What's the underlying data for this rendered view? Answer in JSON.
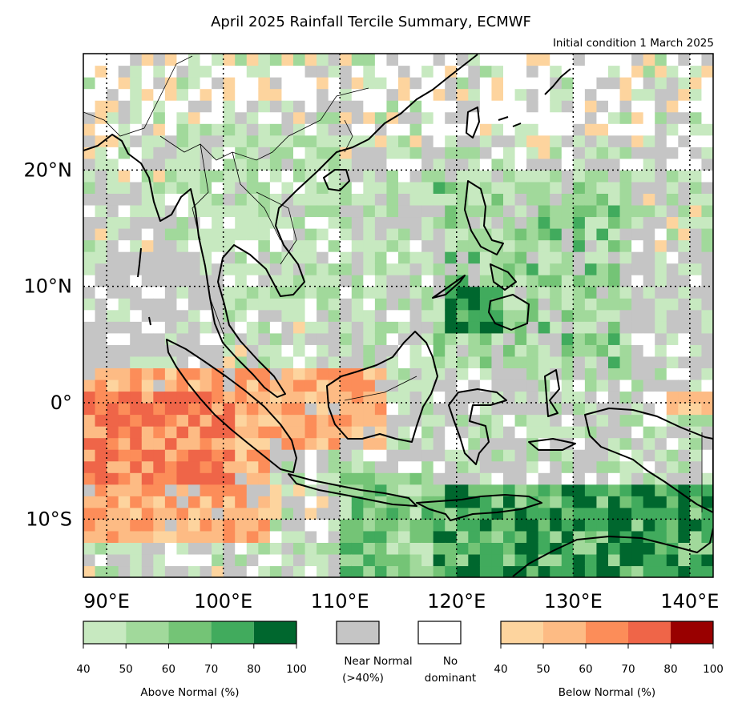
{
  "title": "April 2025 Rainfall Tercile Summary, ECMWF",
  "subtitle": "Initial condition 1 March 2025",
  "map": {
    "lon_range": [
      88,
      142
    ],
    "lat_range": [
      -15,
      30
    ],
    "lon_ticks": [
      {
        "value": 90,
        "label": "90°E"
      },
      {
        "value": 100,
        "label": "100°E"
      },
      {
        "value": 110,
        "label": "110°E"
      },
      {
        "value": 120,
        "label": "120°E"
      },
      {
        "value": 130,
        "label": "130°E"
      },
      {
        "value": 140,
        "label": "140°E"
      }
    ],
    "lat_ticks": [
      {
        "value": 20,
        "label": "20°N"
      },
      {
        "value": 10,
        "label": "10°N"
      },
      {
        "value": 0,
        "label": "0°"
      },
      {
        "value": -10,
        "label": "10°S"
      }
    ],
    "gridlines": "dotted",
    "category_colors": {
      "A40": "#c7e9c0",
      "A50": "#a1d99b",
      "A60": "#74c476",
      "A70": "#41ab5d",
      "A80": "#00672e",
      "N": "#c5c5c5",
      "W": "#ffffff",
      "B40": "#fdd49e",
      "B50": "#fdbb84",
      "B60": "#fc8d59",
      "B70": "#ef6548",
      "B80": "#990000"
    }
  },
  "legend": {
    "above": {
      "label": "Above Normal (%)",
      "ticks": [
        "40",
        "50",
        "60",
        "70",
        "80",
        "100"
      ],
      "colors": [
        "#c7e9c0",
        "#a1d99b",
        "#74c476",
        "#41ab5d",
        "#00672e"
      ]
    },
    "near_normal": {
      "label_line1": "Near Normal",
      "label_line2": "(>40%)",
      "color": "#c5c5c5"
    },
    "no_dominant": {
      "label_line1": "No",
      "label_line2": "dominant",
      "color": "#ffffff"
    },
    "below": {
      "label": "Below Normal (%)",
      "ticks": [
        "40",
        "50",
        "60",
        "70",
        "80",
        "100"
      ],
      "colors": [
        "#fdd49e",
        "#fdbb84",
        "#fc8d59",
        "#ef6548",
        "#990000"
      ]
    }
  }
}
